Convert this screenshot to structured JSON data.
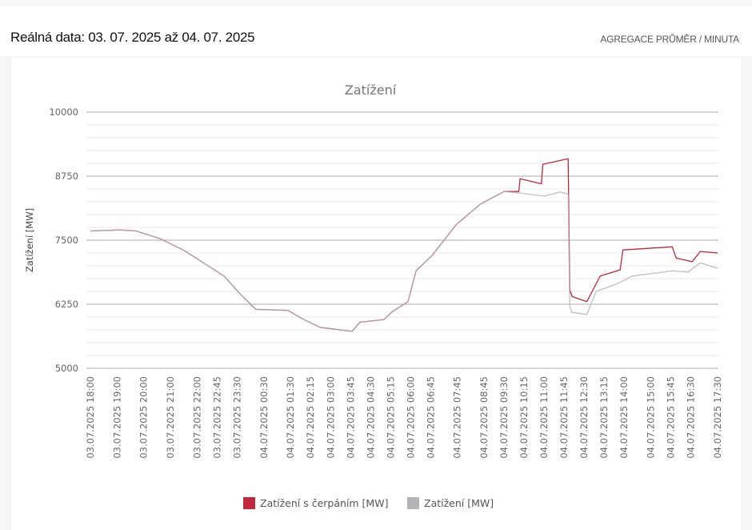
{
  "header": {
    "title": "Reálná data: 03. 07. 2025 až 04. 07. 2025",
    "aggregation": "AGREGACE PRŮMĚR / MINUTA"
  },
  "chart_data": {
    "type": "line",
    "title": "Zatížení",
    "ylabel": "Zatížení [MW]",
    "xlabel": "",
    "ylim": [
      5000,
      10000
    ],
    "yticks": [
      5000,
      6250,
      7500,
      8750,
      10000
    ],
    "minor_tick_step": 250,
    "x_unit": "hours since 03.07.2025 18:00",
    "xlim": [
      0,
      23.5
    ],
    "xticks": [
      "03.07.2025 18:00",
      "03.07.2025 19:00",
      "03.07.2025 20:00",
      "03.07.2025 21:00",
      "03.07.2025 22:00",
      "03.07.2025 22:45",
      "03.07.2025 23:30",
      "04.07.2025 00:30",
      "04.07.2025 01:30",
      "04.07.2025 02:15",
      "04.07.2025 03:00",
      "04.07.2025 03:45",
      "04.07.2025 04:30",
      "04.07.2025 05:15",
      "04.07.2025 06:00",
      "04.07.2025 06:45",
      "04.07.2025 07:45",
      "04.07.2025 08:45",
      "04.07.2025 09:30",
      "04.07.2025 10:15",
      "04.07.2025 11:00",
      "04.07.2025 11:45",
      "04.07.2025 12:30",
      "04.07.2025 13:15",
      "04.07.2025 14:00",
      "04.07.2025 15:00",
      "04.07.2025 15:45",
      "04.07.2025 16:30",
      "04.07.2025 17:30"
    ],
    "legend_position": "bottom-center",
    "series": [
      {
        "name": "Zatížení s čerpáním [MW]",
        "color": "#c0273a",
        "points": [
          [
            0,
            7680
          ],
          [
            1.11,
            7700
          ],
          [
            1.71,
            7680
          ],
          [
            2.61,
            7530
          ],
          [
            3.51,
            7300
          ],
          [
            4.41,
            7000
          ],
          [
            5.01,
            6800
          ],
          [
            5.61,
            6450
          ],
          [
            6.2,
            6150
          ],
          [
            7.4,
            6130
          ],
          [
            8.0,
            5950
          ],
          [
            8.6,
            5800
          ],
          [
            9.8,
            5720
          ],
          [
            10.1,
            5900
          ],
          [
            11.0,
            5950
          ],
          [
            11.3,
            6100
          ],
          [
            11.9,
            6300
          ],
          [
            12.2,
            6900
          ],
          [
            12.8,
            7200
          ],
          [
            13.7,
            7800
          ],
          [
            14.6,
            8200
          ],
          [
            15.5,
            8450
          ],
          [
            16.05,
            8450
          ],
          [
            16.1,
            8700
          ],
          [
            16.9,
            8600
          ],
          [
            16.95,
            8980
          ],
          [
            17.9,
            9090
          ],
          [
            17.96,
            6530
          ],
          [
            18.05,
            6400
          ],
          [
            18.6,
            6300
          ],
          [
            18.8,
            6500
          ],
          [
            19.1,
            6800
          ],
          [
            19.85,
            6920
          ],
          [
            19.95,
            7310
          ],
          [
            21.8,
            7370
          ],
          [
            21.95,
            7150
          ],
          [
            22.55,
            7080
          ],
          [
            22.85,
            7280
          ],
          [
            23.5,
            7250
          ]
        ]
      },
      {
        "name": "Zatížení [MW]",
        "color": "#b3b3b8",
        "points": [
          [
            0,
            7680
          ],
          [
            1.11,
            7700
          ],
          [
            1.71,
            7680
          ],
          [
            2.61,
            7530
          ],
          [
            3.51,
            7300
          ],
          [
            4.41,
            7000
          ],
          [
            5.01,
            6800
          ],
          [
            5.61,
            6450
          ],
          [
            6.2,
            6150
          ],
          [
            7.4,
            6130
          ],
          [
            8.0,
            5950
          ],
          [
            8.6,
            5800
          ],
          [
            9.8,
            5720
          ],
          [
            10.1,
            5900
          ],
          [
            11.0,
            5950
          ],
          [
            11.3,
            6100
          ],
          [
            11.9,
            6300
          ],
          [
            12.2,
            6900
          ],
          [
            12.8,
            7200
          ],
          [
            13.7,
            7800
          ],
          [
            14.6,
            8200
          ],
          [
            15.5,
            8450
          ],
          [
            16.1,
            8420
          ],
          [
            17.0,
            8360
          ],
          [
            17.6,
            8440
          ],
          [
            17.9,
            8400
          ],
          [
            17.96,
            6200
          ],
          [
            18.05,
            6090
          ],
          [
            18.6,
            6050
          ],
          [
            18.95,
            6500
          ],
          [
            19.7,
            6640
          ],
          [
            20.3,
            6800
          ],
          [
            21.8,
            6900
          ],
          [
            22.4,
            6880
          ],
          [
            22.85,
            7060
          ],
          [
            23.5,
            6950
          ]
        ]
      }
    ]
  }
}
